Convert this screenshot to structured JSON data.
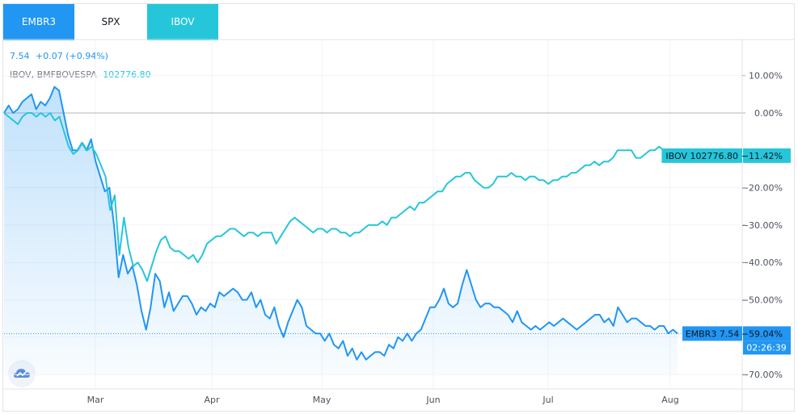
{
  "tabs": [
    {
      "label": "EMBR3",
      "active": true,
      "color": "#2196f3"
    },
    {
      "label": "SPX",
      "active": false,
      "color": "#ffffff"
    },
    {
      "label": "IBOV",
      "active": true,
      "color": "#26c6da"
    }
  ],
  "legend": {
    "main_price": "7.54",
    "main_change": "+0.07 (+0.94%)",
    "compare_symbol": "IBOV, BMFBOVESPA",
    "compare_value": "102776.80",
    "main_color": "#2196f3",
    "compare_color": "#26c6da"
  },
  "logo": {
    "icon": "tradingview-cloud-icon"
  },
  "chart_data": {
    "type": "line",
    "yticks": [
      "10.00%",
      "0.00%",
      "−20.00%",
      "−30.00%",
      "−40.00%",
      "−50.00%",
      "−70.00%"
    ],
    "ytick_values": [
      10,
      0,
      -20,
      -30,
      -40,
      -50,
      -70
    ],
    "xticks": [
      "Mar",
      "Apr",
      "May",
      "Jun",
      "Jul",
      "Aug"
    ],
    "ylim": [
      -75,
      15
    ],
    "grid": true,
    "series": [
      {
        "name": "EMBR3",
        "color": "#2196f3",
        "fill": true,
        "values": [
          0,
          2,
          0,
          1,
          3,
          4,
          5,
          1,
          3,
          2,
          4,
          7,
          6,
          0,
          -6,
          -10,
          -10,
          -8,
          -10,
          -7,
          -13,
          -17,
          -21,
          -20,
          -30,
          -44,
          -38,
          -43,
          -41,
          -46,
          -53,
          -58,
          -52,
          -43,
          -45,
          -52,
          -48,
          -53,
          -51,
          -49,
          -49,
          -51,
          -54,
          -52,
          -53,
          -51,
          -52,
          -48,
          -49,
          -48,
          -47,
          -48,
          -50,
          -50,
          -48,
          -52,
          -50,
          -54,
          -55,
          -52,
          -57,
          -60,
          -56,
          -53,
          -50,
          -52,
          -57,
          -58,
          -59,
          -59,
          -61,
          -59,
          -62,
          -63,
          -61,
          -65,
          -63,
          -66,
          -64,
          -66,
          -65,
          -64,
          -64,
          -65,
          -62,
          -63,
          -60,
          -61,
          -59,
          -61,
          -59,
          -58,
          -55,
          -52,
          -52,
          -50,
          -47,
          -51,
          -52,
          -51,
          -46,
          -42,
          -46,
          -50,
          -52,
          -51,
          -51,
          -52,
          -52,
          -53,
          -54,
          -56,
          -53,
          -56,
          -57,
          -58,
          -57,
          -58,
          -57,
          -56,
          -57,
          -56,
          -55,
          -56,
          -57,
          -58,
          -57,
          -56,
          -55,
          -54,
          -54,
          -56,
          -55,
          -57,
          -52,
          -54,
          -56,
          -55,
          -55,
          -56,
          -57,
          -57,
          -58,
          -57,
          -57,
          -59,
          -58,
          -59.04
        ]
      },
      {
        "name": "IBOV",
        "color": "#26c6da",
        "fill": false,
        "values": [
          0,
          -1,
          -2,
          -3,
          -1,
          0,
          0,
          -1,
          0,
          -1,
          0,
          -2,
          -1,
          -5,
          -9,
          -11,
          -10,
          -8,
          -10,
          -9,
          -11,
          -14,
          -17,
          -26,
          -22,
          -38,
          -28,
          -36,
          -41,
          -40,
          -42,
          -45,
          -41,
          -37,
          -34,
          -33,
          -36,
          -37,
          -37,
          -38,
          -39,
          -38,
          -40,
          -38,
          -35,
          -34,
          -33,
          -33,
          -32,
          -31,
          -31,
          -32,
          -33,
          -32,
          -32,
          -33,
          -32,
          -32,
          -32,
          -35,
          -33,
          -31,
          -29,
          -28,
          -29,
          -30,
          -31,
          -32,
          -31,
          -31,
          -32,
          -31,
          -31,
          -32,
          -32,
          -33,
          -32,
          -32,
          -31,
          -30,
          -30,
          -30,
          -29,
          -30,
          -28,
          -28,
          -27,
          -26,
          -25,
          -26,
          -24,
          -24,
          -23,
          -22,
          -21,
          -21,
          -19,
          -18,
          -17,
          -17,
          -16,
          -16,
          -18,
          -19,
          -20,
          -20,
          -19,
          -17,
          -17,
          -17,
          -16,
          -17,
          -17,
          -18,
          -17,
          -17,
          -18,
          -18,
          -19,
          -18,
          -18,
          -17,
          -17,
          -16,
          -16,
          -15,
          -14,
          -14,
          -13,
          -14,
          -13,
          -13,
          -12,
          -10,
          -10,
          -10,
          -10,
          -12,
          -12,
          -11,
          -10,
          -10,
          -9,
          -10,
          -10,
          -11,
          -11.42
        ]
      }
    ],
    "price_labels": [
      {
        "series": "IBOV",
        "label": "IBOV 102776.80",
        "value": "−11.42%",
        "color": "#26c6da"
      },
      {
        "series": "EMBR3",
        "label": "EMBR3 7.54",
        "value": "−59.04%",
        "color": "#2196f3"
      }
    ],
    "countdown": "02:26:39"
  }
}
